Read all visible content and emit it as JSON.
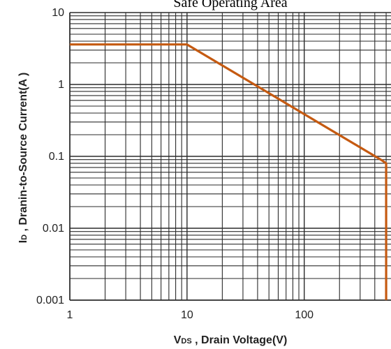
{
  "chart_data": {
    "type": "line",
    "title": "Safe Operating Area",
    "xscale": "log",
    "yscale": "log",
    "xlim": [
      1,
      550
    ],
    "ylim": [
      0.001,
      10
    ],
    "xticks": [
      1,
      10,
      100
    ],
    "xtick_labels": [
      "1",
      "10",
      "100"
    ],
    "yticks": [
      0.001,
      0.01,
      0.1,
      1,
      10
    ],
    "ytick_labels": [
      "0.001",
      "0.01",
      "0.1",
      "1",
      "10"
    ],
    "xlabel": {
      "main": "V",
      "sub": "DS",
      "rest": " , Drain Voltage(V)"
    },
    "ylabel": {
      "main": "I",
      "sub": "D",
      "rest": " , Dranin-to-Source Current(A )"
    },
    "grid": true,
    "series": [
      {
        "color": "#c55a11",
        "x": [
          1,
          10,
          450,
          500,
          500
        ],
        "y": [
          3.6,
          3.6,
          0.09,
          0.08,
          0.001
        ]
      }
    ]
  }
}
